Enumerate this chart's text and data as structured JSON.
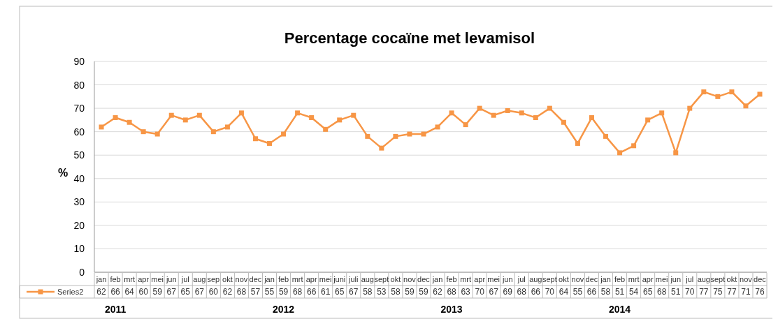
{
  "chart_data": {
    "type": "line",
    "title": "Percentage cocaïne met levamisol",
    "ylabel": "%",
    "categories": [
      "jan",
      "feb",
      "mrt",
      "apr",
      "mei",
      "jun",
      "jul",
      "aug",
      "sep",
      "okt",
      "nov",
      "dec",
      "jan",
      "feb",
      "mrt",
      "apr",
      "mei",
      "juni",
      "juli",
      "aug",
      "sept",
      "okt",
      "nov",
      "dec",
      "jan",
      "feb",
      "mrt",
      "apr",
      "mei",
      "jun",
      "jul",
      "aug",
      "sept",
      "okt",
      "nov",
      "dec",
      "jan",
      "feb",
      "mrt",
      "apr",
      "mei",
      "jun",
      "jul",
      "aug",
      "sept",
      "okt",
      "nov",
      "dec"
    ],
    "series": [
      {
        "name": "Series2",
        "color": "#f79646",
        "values": [
          62,
          66,
          64,
          60,
          59,
          67,
          65,
          67,
          60,
          62,
          68,
          57,
          55,
          59,
          68,
          66,
          61,
          65,
          67,
          58,
          53,
          58,
          59,
          59,
          62,
          68,
          63,
          70,
          67,
          69,
          68,
          66,
          70,
          64,
          55,
          66,
          58,
          51,
          54,
          65,
          68,
          51,
          70,
          77,
          75,
          77,
          71,
          76
        ]
      }
    ],
    "ylim": [
      0,
      90
    ],
    "yticks": [
      0,
      10,
      20,
      30,
      40,
      50,
      60,
      70,
      80,
      90
    ],
    "grid": "y",
    "marker": "square",
    "line_style": "solid",
    "legend": "bottom",
    "data_labels": true,
    "annotations": [
      "2011",
      "2012",
      "2013",
      "2014"
    ]
  }
}
